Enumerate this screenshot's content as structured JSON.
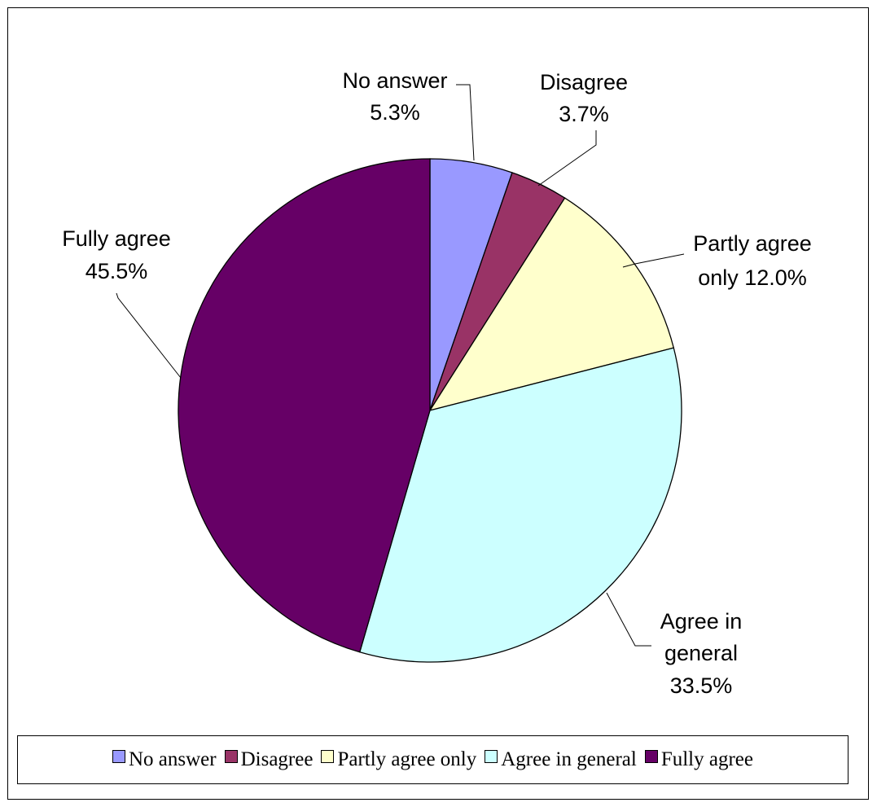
{
  "chart_data": {
    "type": "pie",
    "start_angle_deg": 0,
    "direction": "clockwise",
    "slices": [
      {
        "name": "No answer",
        "label_line1": "No answer",
        "label_line2": "5.3%",
        "value": 5.3,
        "color": "#9999ff"
      },
      {
        "name": "Disagree",
        "label_line1": "Disagree",
        "label_line2": "3.7%",
        "value": 3.7,
        "color": "#993366"
      },
      {
        "name": "Partly agree only",
        "label_line1": "Partly agree",
        "label_line2": "only 12.0%",
        "value": 12.0,
        "color": "#ffffcc"
      },
      {
        "name": "Agree in general",
        "label_line1": "Agree in",
        "label_line2": "general",
        "label_line3": "33.5%",
        "value": 33.5,
        "color": "#ccffff"
      },
      {
        "name": "Fully agree",
        "label_line1": "Fully agree",
        "label_line2": "45.5%",
        "value": 45.5,
        "color": "#660066"
      }
    ],
    "legend": {
      "position": "bottom",
      "items": [
        "No answer",
        "Disagree",
        "Partly agree only",
        "Agree in general",
        "Fully agree"
      ]
    }
  }
}
